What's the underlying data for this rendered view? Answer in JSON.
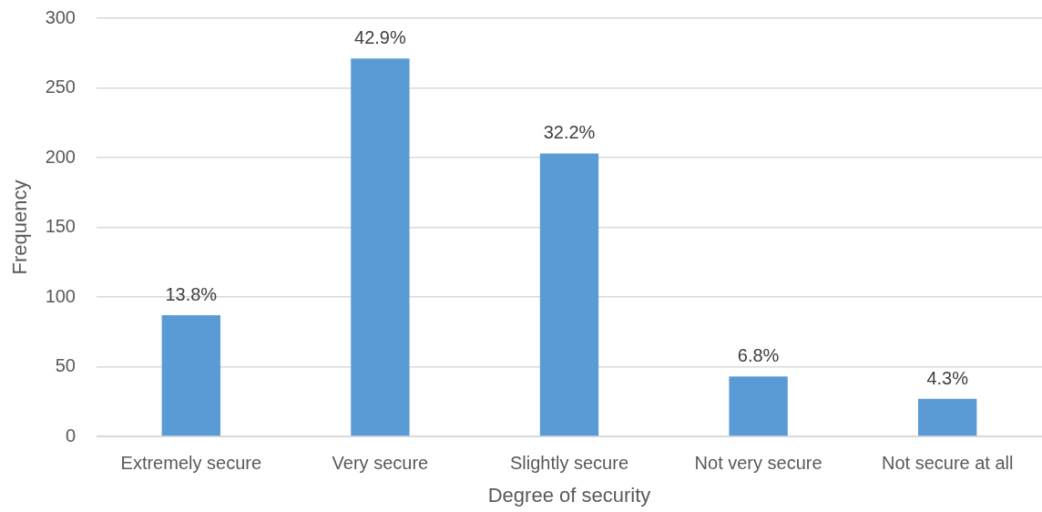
{
  "chart_data": {
    "type": "bar",
    "xlabel": "Degree of security",
    "ylabel": "Frequency",
    "categories": [
      "Extremely secure",
      "Very secure",
      "Slightly secure",
      "Not very secure",
      "Not secure at all"
    ],
    "values": [
      87,
      271,
      203,
      43,
      27
    ],
    "color": "#5b9bd5",
    "annotations": [
      {
        "text": "13.8%",
        "x": "Extremely secure",
        "y": 87
      },
      {
        "text": "42.9%",
        "x": "Very secure",
        "y": 271
      },
      {
        "text": "32.2%",
        "x": "Slightly secure",
        "y": 203
      },
      {
        "text": "6.8%",
        "x": "Not very secure",
        "y": 43
      },
      {
        "text": "4.3%",
        "x": "Not secure at all",
        "y": 27
      }
    ],
    "ylim": [
      0,
      300
    ],
    "yticks": [
      0,
      50,
      100,
      150,
      200,
      250,
      300
    ],
    "grid": "y"
  }
}
